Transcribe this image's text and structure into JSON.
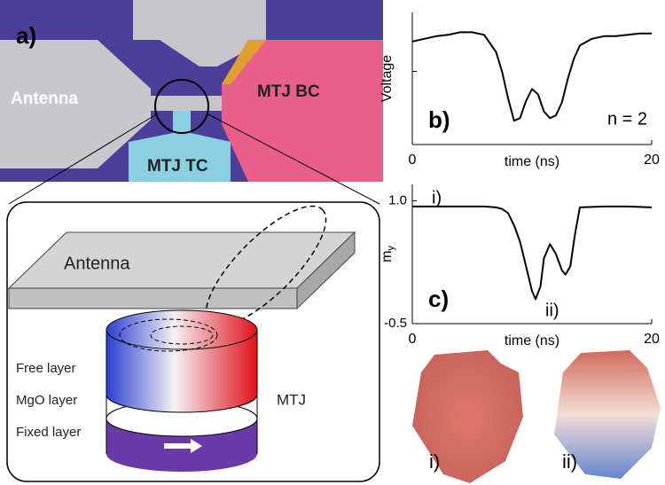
{
  "figure": {
    "panel_a": {
      "label": "a)",
      "antenna": "Antenna",
      "mtj_bc": "MTJ BC",
      "mtj_tc": "MTJ TC"
    },
    "schematic": {
      "antenna": "Antenna",
      "free_layer": "Free layer",
      "mgo_layer": "MgO layer",
      "fixed_layer": "Fixed layer",
      "mtj": "MTJ"
    },
    "snapshots": [
      "i)",
      "ii)"
    ]
  },
  "chart_data": [
    {
      "type": "line",
      "panel_label": "b)",
      "annotation": "n = 2",
      "ylabel": "Voltage",
      "xlabel": "time (ns)",
      "color": "#000000",
      "x": [
        0,
        1,
        2,
        3,
        4,
        5,
        6,
        7,
        7.5,
        8,
        8.5,
        9,
        9.5,
        10,
        10.5,
        11,
        11.5,
        12,
        12.5,
        13,
        13.5,
        14,
        15,
        16,
        17,
        18,
        19,
        20
      ],
      "values": [
        0.78,
        0.8,
        0.82,
        0.83,
        0.85,
        0.85,
        0.83,
        0.7,
        0.55,
        0.35,
        0.18,
        0.2,
        0.33,
        0.42,
        0.38,
        0.25,
        0.2,
        0.22,
        0.32,
        0.5,
        0.65,
        0.75,
        0.8,
        0.82,
        0.82,
        0.83,
        0.84,
        0.84
      ],
      "xlim": [
        0,
        20
      ],
      "xticks": [
        0,
        20
      ],
      "ylim": [
        0,
        1
      ]
    },
    {
      "type": "line",
      "panel_label": "c)",
      "annotations": [
        "i)",
        "ii)"
      ],
      "ylabel": "m",
      "ylabel_subscript": "y",
      "xlabel": "time (ns)",
      "color": "#000000",
      "x": [
        0,
        2,
        4,
        6,
        7,
        7.5,
        8,
        8.5,
        9,
        9.5,
        10,
        10.3,
        10.7,
        11,
        11.5,
        12,
        12.5,
        12.8,
        13.2,
        13.6,
        14,
        16,
        18,
        20
      ],
      "values": [
        0.93,
        0.93,
        0.93,
        0.93,
        0.92,
        0.9,
        0.85,
        0.7,
        0.5,
        0.2,
        -0.1,
        -0.2,
        -0.05,
        0.3,
        0.47,
        0.35,
        0.15,
        0.1,
        0.2,
        0.6,
        0.92,
        0.93,
        0.93,
        0.92
      ],
      "xlim": [
        0,
        20
      ],
      "xticks": [
        0,
        20
      ],
      "ylim": [
        -0.5,
        1.2
      ],
      "yticks": [
        {
          "value": 1,
          "label": "1.0"
        },
        -0.5
      ]
    }
  ]
}
